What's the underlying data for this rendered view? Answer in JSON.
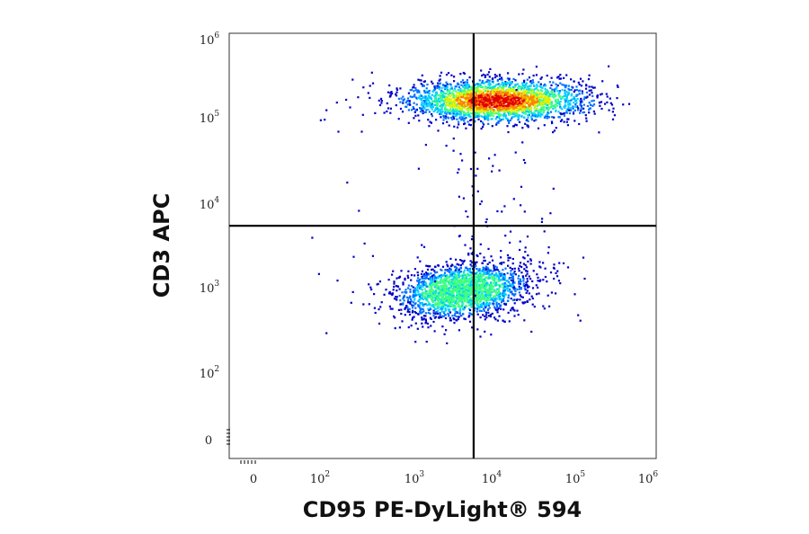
{
  "chart_data": {
    "type": "scatter",
    "style": "flow-cytometry density dot plot",
    "xlabel": "CD95 PE-DyLight® 594",
    "ylabel": "CD3 APC",
    "scale": "biexponential (log with linear region near 0)",
    "xlim": [
      -100,
      1000000
    ],
    "ylim": [
      -100,
      1000000
    ],
    "x_ticks": [
      {
        "base": "0",
        "exp": ""
      },
      {
        "base": "10",
        "exp": "2"
      },
      {
        "base": "10",
        "exp": "3"
      },
      {
        "base": "10",
        "exp": "4"
      },
      {
        "base": "10",
        "exp": "5"
      },
      {
        "base": "10",
        "exp": "6"
      }
    ],
    "y_ticks": [
      {
        "base": "0",
        "exp": ""
      },
      {
        "base": "10",
        "exp": "2"
      },
      {
        "base": "10",
        "exp": "3"
      },
      {
        "base": "10",
        "exp": "4"
      },
      {
        "base": "10",
        "exp": "5"
      },
      {
        "base": "10",
        "exp": "6"
      }
    ],
    "quadrant_gate": {
      "x": 6500,
      "y": 5500
    },
    "populations": [
      {
        "center_x": 12000,
        "center_y": 170000,
        "n": 2600,
        "density_peak": "high"
      },
      {
        "center_x": 4500,
        "center_y": 950,
        "n": 2200,
        "density_peak": "medium"
      }
    ],
    "density_colors": [
      "#0000c8",
      "#0070ff",
      "#00d0ff",
      "#40ff80",
      "#e0f000",
      "#ff8000",
      "#e00000"
    ],
    "grid": false,
    "legend": "none"
  }
}
